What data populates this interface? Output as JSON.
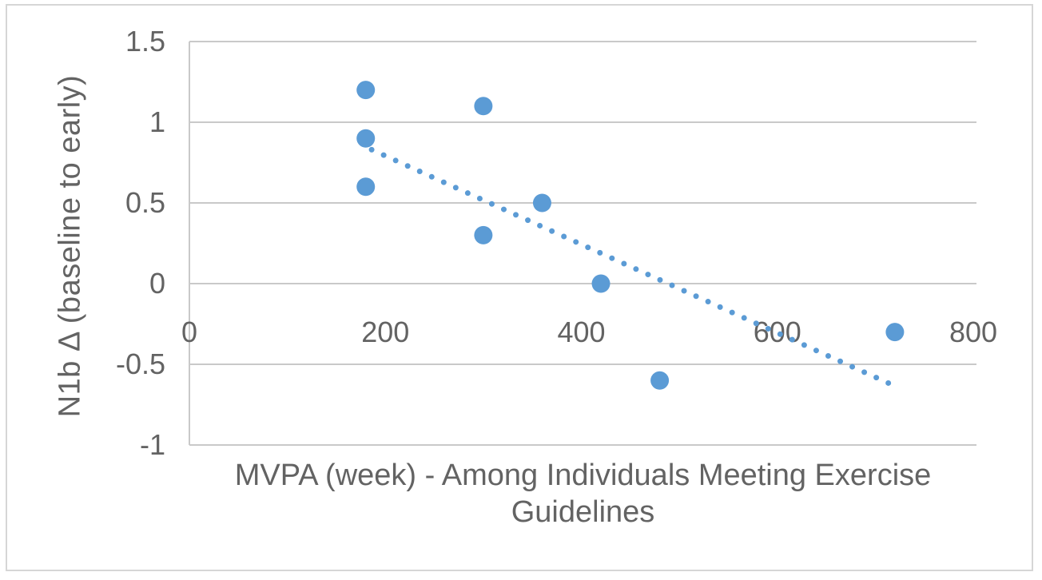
{
  "chart_data": {
    "type": "scatter",
    "title": "",
    "xlabel": "MVPA (week) - Among Individuals Meeting Exercise Guidelines",
    "xlabel_lines": [
      "MVPA (week) - Among Individuals Meeting Exercise",
      "Guidelines"
    ],
    "ylabel": "N1b Δ (baseline to early)",
    "xlim": [
      0,
      800
    ],
    "ylim": [
      -1,
      1.5
    ],
    "x_ticks": [
      0,
      200,
      400,
      600,
      800
    ],
    "y_ticks": [
      1.5,
      1,
      0.5,
      0,
      -0.5,
      -1
    ],
    "grid": true,
    "legend": false,
    "points": [
      {
        "x": 180,
        "y": 1.2
      },
      {
        "x": 300,
        "y": 1.1
      },
      {
        "x": 180,
        "y": 0.9
      },
      {
        "x": 180,
        "y": 0.6
      },
      {
        "x": 360,
        "y": 0.5
      },
      {
        "x": 300,
        "y": 0.3
      },
      {
        "x": 420,
        "y": 0.0
      },
      {
        "x": 480,
        "y": -0.6
      },
      {
        "x": 720,
        "y": -0.3
      }
    ],
    "trendline": {
      "type": "linear",
      "style": "dotted",
      "x_start": 186,
      "y_start": 0.83,
      "x_end": 722,
      "y_end": -0.64
    },
    "colors": {
      "marker": "#5B9BD5",
      "trendline": "#5B9BD5",
      "gridline": "#C9C9C9",
      "axis_line": "#C9C9C9",
      "text": "#636363",
      "frame_border": "#D6D6D6",
      "background": "#FFFFFF"
    }
  }
}
